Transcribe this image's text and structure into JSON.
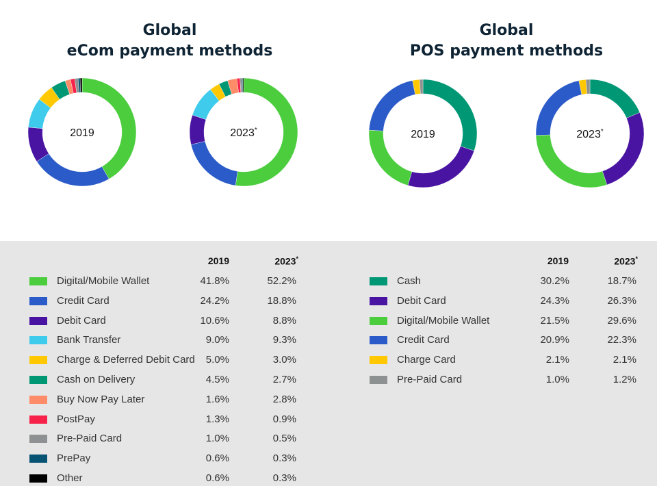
{
  "titles": {
    "ecom": "Global\neCom payment methods",
    "pos": "Global\nPOS payment methods"
  },
  "columns": {
    "y2019": "2019",
    "y2023": "2023",
    "y2023_mark": "*"
  },
  "colors": {
    "digital_wallet": "#4bcd3e",
    "credit_card": "#2a5bc8",
    "debit_card": "#4a14a3",
    "bank_transfer": "#3fcbec",
    "charge_card": "#ffc800",
    "cash": "#009775",
    "bnpl": "#ff8c69",
    "postpay": "#f7224a",
    "prepaid": "#8e9191",
    "prepay": "#065373",
    "other": "#000000",
    "panel": "#e6e6e6",
    "title": "#0e2333"
  },
  "chart_data": [
    {
      "type": "pie",
      "title": "Global eCom payment methods",
      "categories": [
        "Digital/Mobile Wallet",
        "Credit Card",
        "Debit Card",
        "Bank Transfer",
        "Charge & Deferred Debit Card",
        "Cash on Delivery",
        "Buy Now Pay Later",
        "PostPay",
        "Pre-Paid Card",
        "PrePay",
        "Other"
      ],
      "color_keys": [
        "digital_wallet",
        "credit_card",
        "debit_card",
        "bank_transfer",
        "charge_card",
        "cash",
        "bnpl",
        "postpay",
        "prepaid",
        "prepay",
        "other"
      ],
      "series": [
        {
          "name": "2019",
          "values": [
            41.8,
            24.2,
            10.6,
            9.0,
            5.0,
            4.5,
            1.6,
            1.3,
            1.0,
            0.6,
            0.6
          ],
          "display": [
            "41.8%",
            "24.2%",
            "10.6%",
            "9.0%",
            "5.0%",
            "4.5%",
            "1.6%",
            "1.3%",
            "1.0%",
            "0.6%",
            "0.6%"
          ]
        },
        {
          "name": "2023",
          "values": [
            52.2,
            18.8,
            8.8,
            9.3,
            3.0,
            2.7,
            2.8,
            0.9,
            0.5,
            0.3,
            0.3
          ],
          "display": [
            "52.2%",
            "18.8%",
            "8.8%",
            "9.3%",
            "3.0%",
            "2.7%",
            "2.8%",
            "0.9%",
            "0.5%",
            "0.3%",
            "0.3%"
          ]
        }
      ]
    },
    {
      "type": "pie",
      "title": "Global POS payment methods",
      "categories": [
        "Cash",
        "Debit Card",
        "Digital/Mobile Wallet",
        "Credit Card",
        "Charge Card",
        "Pre-Paid Card"
      ],
      "color_keys": [
        "cash",
        "debit_card",
        "digital_wallet",
        "credit_card",
        "charge_card",
        "prepaid"
      ],
      "series": [
        {
          "name": "2019",
          "values": [
            30.2,
            24.3,
            21.5,
            20.9,
            2.1,
            1.0
          ],
          "display": [
            "30.2%",
            "24.3%",
            "21.5%",
            "20.9%",
            "2.1%",
            "1.0%"
          ]
        },
        {
          "name": "2023",
          "values": [
            18.7,
            26.3,
            29.6,
            22.3,
            2.1,
            1.2
          ],
          "display": [
            "18.7%",
            "26.3%",
            "29.6%",
            "22.3%",
            "2.1%",
            "1.2%"
          ]
        }
      ]
    }
  ]
}
